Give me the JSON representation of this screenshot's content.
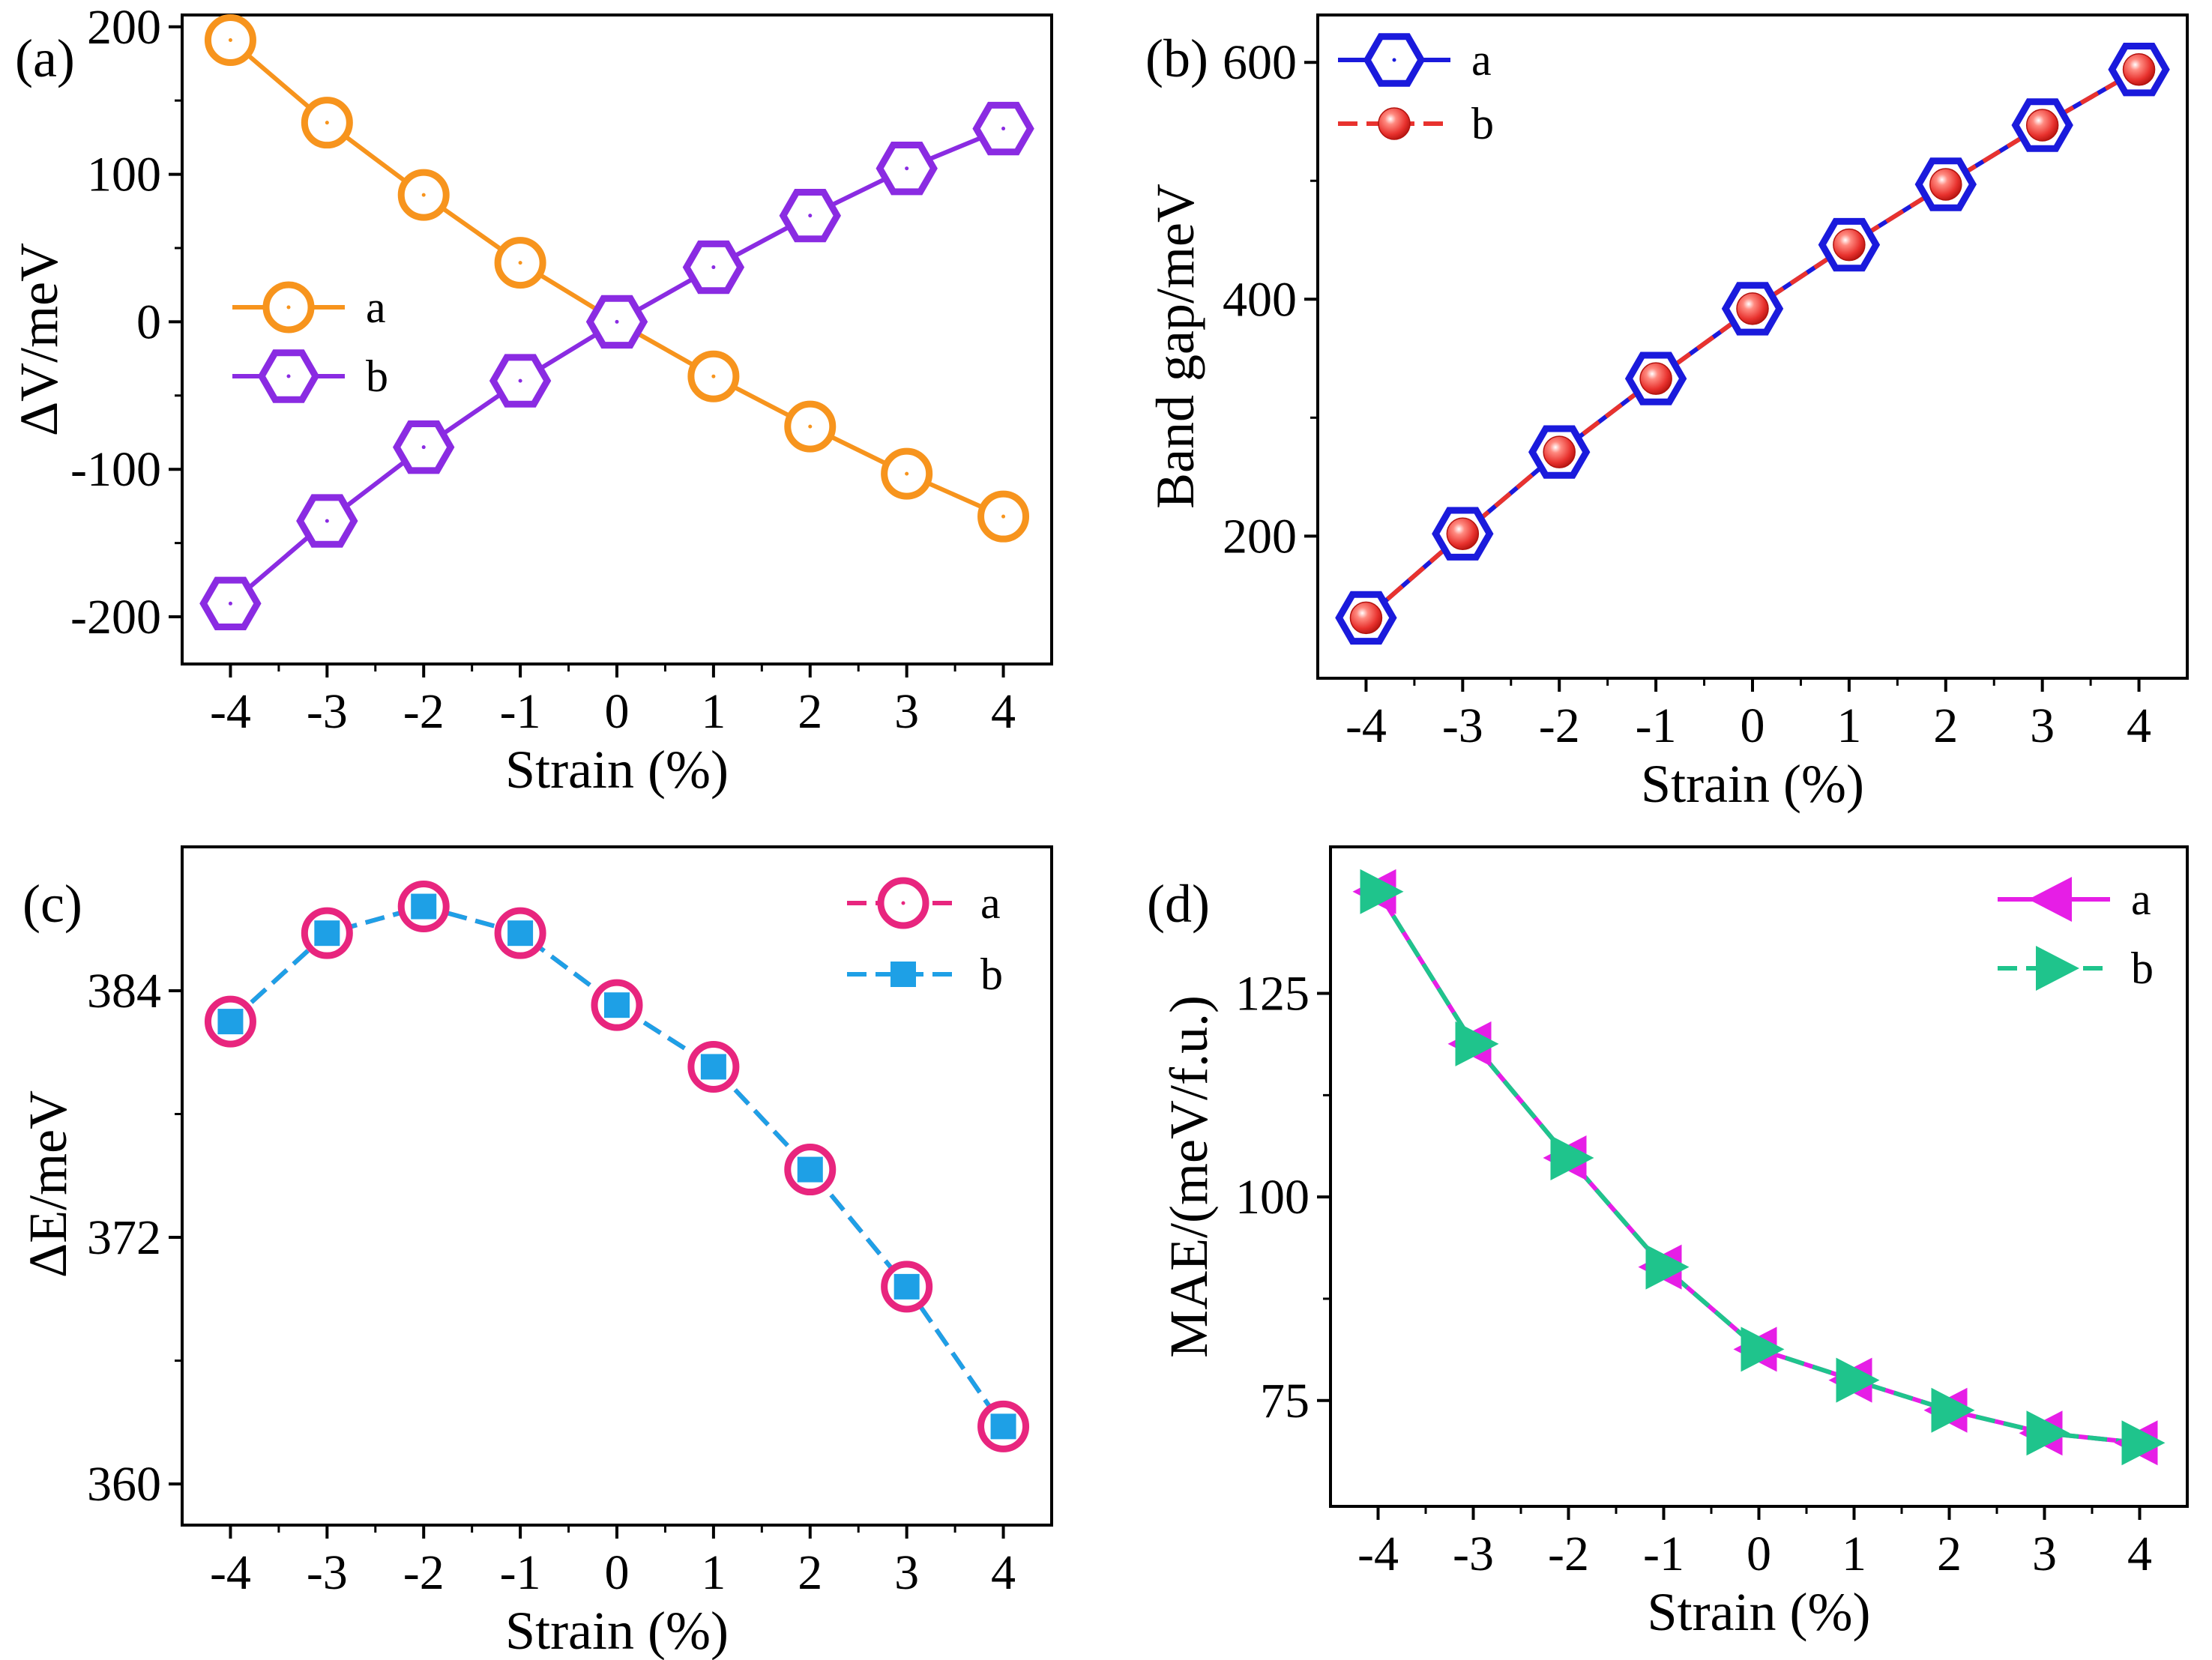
{
  "chart_data": [
    {
      "type": "line",
      "panel_label": "(a)",
      "title": "",
      "xlabel": "Strain (%)",
      "ylabel": "ΔV/meV",
      "x": [
        -4,
        -3,
        -2,
        -1,
        0,
        1,
        2,
        3,
        4
      ],
      "xticks": [
        -4,
        -3,
        -2,
        -1,
        0,
        1,
        2,
        3,
        4
      ],
      "xlim": [
        -4.5,
        4.5
      ],
      "ylim": [
        -232,
        208
      ],
      "yticks": [
        -200,
        -100,
        0,
        100,
        200
      ],
      "legend_position": "center-left",
      "series": [
        {
          "name": "a",
          "marker": "circle-open",
          "line": "solid",
          "color": "#f7941d",
          "values": [
            191,
            135,
            86,
            40,
            0,
            -37,
            -71,
            -103,
            -132
          ]
        },
        {
          "name": "b",
          "marker": "hexagon-open",
          "line": "solid",
          "color": "#8a2be2",
          "values": [
            -191,
            -135,
            -85,
            -40,
            0,
            37,
            72,
            104,
            131
          ]
        }
      ]
    },
    {
      "type": "line",
      "panel_label": "(b)",
      "title": "",
      "xlabel": "Strain (%)",
      "ylabel": "Band gap/meV",
      "x": [
        -4,
        -3,
        -2,
        -1,
        0,
        1,
        2,
        3,
        4
      ],
      "xticks": [
        -4,
        -3,
        -2,
        -1,
        0,
        1,
        2,
        3,
        4
      ],
      "xlim": [
        -4.5,
        4.5
      ],
      "ylim": [
        80,
        640
      ],
      "yticks": [
        200,
        400,
        600
      ],
      "legend_position": "top-left",
      "series": [
        {
          "name": "a",
          "marker": "hexagon-open",
          "line": "solid",
          "color": "#1a1adc",
          "values": [
            131,
            202,
            271,
            333,
            392,
            446,
            497,
            547,
            594
          ]
        },
        {
          "name": "b",
          "marker": "sphere",
          "line": "dashed",
          "color": "#e8322e",
          "values": [
            131,
            202,
            271,
            333,
            392,
            446,
            497,
            547,
            594
          ]
        }
      ]
    },
    {
      "type": "line",
      "panel_label": "(c)",
      "title": "",
      "xlabel": "Strain (%)",
      "ylabel": "ΔE/meV",
      "x": [
        -4,
        -3,
        -2,
        -1,
        0,
        1,
        2,
        3,
        4
      ],
      "xticks": [
        -4,
        -3,
        -2,
        -1,
        0,
        1,
        2,
        3,
        4
      ],
      "xlim": [
        -4.5,
        4.5
      ],
      "ylim": [
        358,
        391
      ],
      "yticks": [
        360,
        372,
        384
      ],
      "legend_position": "top-right",
      "series": [
        {
          "name": "a",
          "marker": "circle-open",
          "line": "dashed",
          "color": "#e8257e",
          "values": [
            382.5,
            386.8,
            388.1,
            386.8,
            383.3,
            380.3,
            375.3,
            369.6,
            362.8
          ]
        },
        {
          "name": "b",
          "marker": "square",
          "line": "dashed",
          "color": "#1ea0e6",
          "values": [
            382.5,
            386.8,
            388.1,
            386.8,
            383.3,
            380.3,
            375.3,
            369.6,
            362.8
          ]
        }
      ]
    },
    {
      "type": "line",
      "panel_label": "(d)",
      "title": "",
      "xlabel": "Strain (%)",
      "ylabel": "MAE/(meV/f.u.)",
      "x": [
        -4,
        -3,
        -2,
        -1,
        0,
        1,
        2,
        3,
        4
      ],
      "xticks": [
        -4,
        -3,
        -2,
        -1,
        0,
        1,
        2,
        3,
        4
      ],
      "xlim": [
        -4.5,
        4.5
      ],
      "ylim": [
        62,
        143
      ],
      "yticks": [
        75,
        100,
        125
      ],
      "legend_position": "top-right",
      "series": [
        {
          "name": "a",
          "marker": "triangle-left",
          "line": "solid",
          "color": "#e61ee6",
          "values": [
            137.5,
            118.8,
            104.8,
            91.4,
            81.3,
            77.5,
            73.8,
            71.0,
            69.8
          ]
        },
        {
          "name": "b",
          "marker": "triangle-right",
          "line": "dashed",
          "color": "#1fc48c",
          "values": [
            137.5,
            118.8,
            104.8,
            91.4,
            81.3,
            77.5,
            73.8,
            71.0,
            69.8
          ]
        }
      ]
    }
  ]
}
